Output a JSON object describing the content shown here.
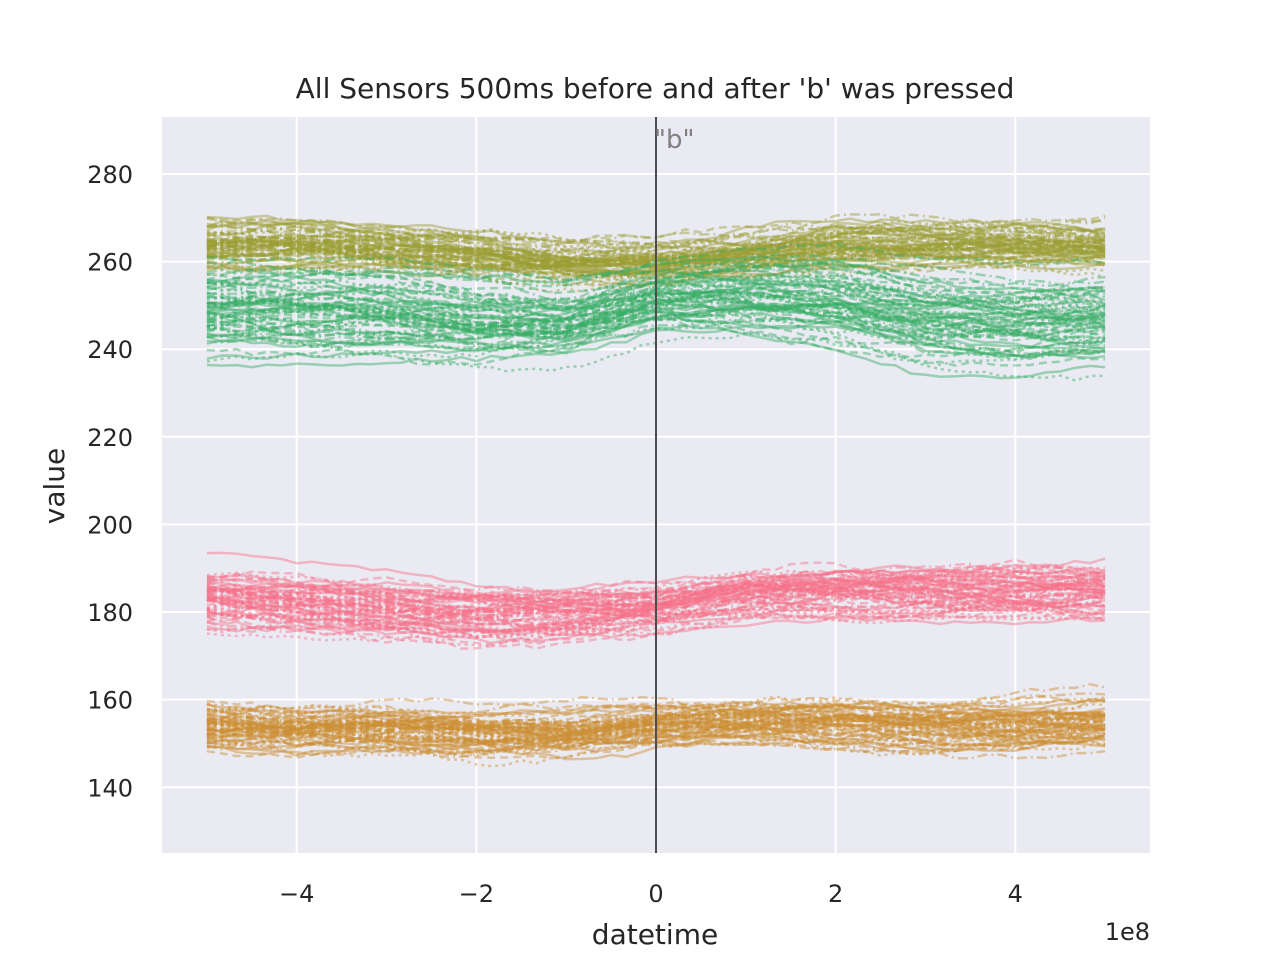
{
  "chart_data": {
    "type": "line",
    "title": "All Sensors 500ms before and after 'b' was pressed",
    "xlabel": "datetime",
    "ylabel": "value",
    "x_offset_label": "1e8",
    "xlim": [
      -5.5,
      5.5
    ],
    "ylim": [
      125,
      293
    ],
    "x_ticks": [
      -4,
      -2,
      0,
      2,
      4
    ],
    "x_tick_labels": [
      "−4",
      "−2",
      "0",
      "2",
      "4"
    ],
    "y_ticks": [
      140,
      160,
      180,
      200,
      220,
      240,
      260,
      280
    ],
    "y_tick_labels": [
      "140",
      "160",
      "180",
      "200",
      "220",
      "240",
      "260",
      "280"
    ],
    "grid": true,
    "background": "#eaeaf2",
    "event_marker": {
      "x": 0,
      "label": "\"b\"",
      "color": "#4d4d4d"
    },
    "x": [
      -5,
      -4,
      -3,
      -2,
      -1,
      0,
      1,
      2,
      3,
      4,
      5
    ],
    "series_bands": [
      {
        "color": "#f77189",
        "baseline": [
          183,
          182,
          181,
          180,
          180,
          181,
          184,
          185,
          185,
          185,
          185
        ],
        "spread": [
          10,
          10,
          10,
          9,
          8,
          7,
          8,
          9,
          9,
          9,
          9
        ]
      },
      {
        "color": "#cc8f32",
        "baseline": [
          154,
          153,
          153,
          152,
          152,
          154,
          155,
          155,
          154,
          154,
          155
        ],
        "spread": [
          7,
          7,
          7,
          7,
          6,
          6,
          6,
          7,
          7,
          7,
          7
        ]
      },
      {
        "color": "#9b9e34",
        "baseline": [
          264,
          264,
          263,
          262,
          260,
          260,
          262,
          264,
          264,
          264,
          264
        ],
        "spread": [
          6,
          6,
          6,
          6,
          5,
          5,
          6,
          6,
          6,
          6,
          6
        ]
      },
      {
        "color": "#35ad64",
        "baseline": [
          250,
          250,
          250,
          248,
          247,
          252,
          253,
          252,
          248,
          247,
          248
        ],
        "spread": [
          14,
          14,
          14,
          13,
          11,
          10,
          11,
          13,
          14,
          14,
          14
        ]
      }
    ]
  }
}
